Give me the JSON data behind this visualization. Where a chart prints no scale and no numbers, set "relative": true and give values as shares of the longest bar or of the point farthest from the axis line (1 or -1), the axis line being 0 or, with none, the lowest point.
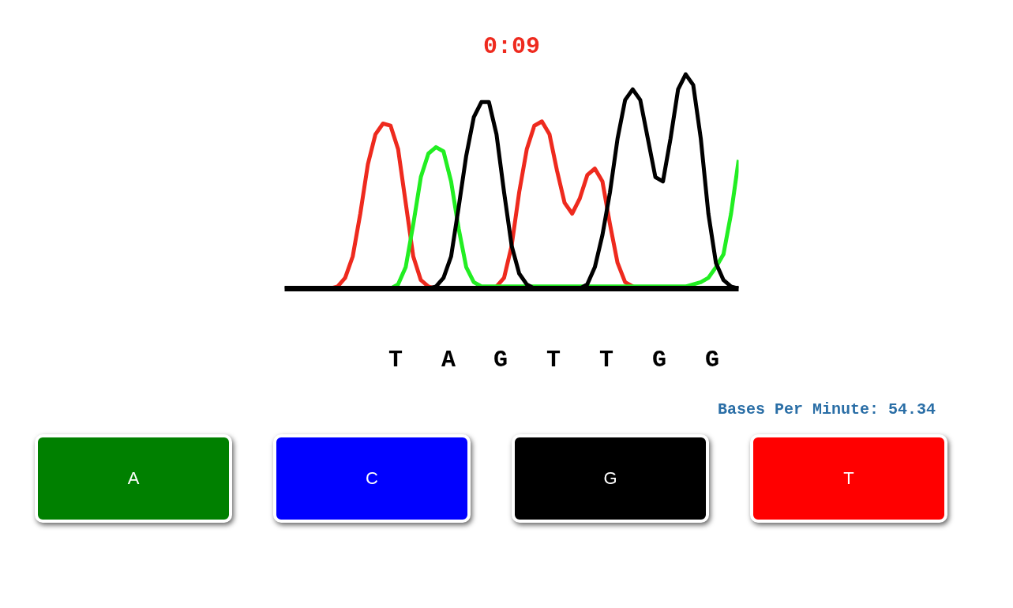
{
  "chart_data": {
    "type": "line",
    "relative": true,
    "title": "0:09",
    "categories": [
      null,
      null,
      null,
      null,
      null,
      null,
      null,
      null,
      null,
      null,
      null,
      null,
      null,
      null,
      null,
      null,
      null,
      null,
      null,
      null,
      null,
      null,
      null,
      null,
      null,
      null,
      null,
      null,
      null,
      null,
      null,
      null,
      null,
      null,
      null,
      null,
      null,
      null,
      null,
      null,
      null,
      null,
      null,
      null,
      null,
      null,
      null,
      null,
      null,
      null,
      null,
      null,
      null,
      null,
      null,
      null,
      null,
      null,
      null,
      null,
      null
    ],
    "series": [
      {
        "color": "#ee2a1e",
        "values": [
          null,
          null,
          null,
          null,
          null,
          0,
          0,
          0.01,
          0.05,
          0.15,
          0.35,
          0.58,
          0.72,
          0.77,
          0.76,
          0.65,
          0.4,
          0.15,
          0.04,
          0.01,
          0,
          0,
          0,
          0,
          0,
          0,
          0,
          0,
          0.01,
          0.05,
          0.2,
          0.45,
          0.65,
          0.76,
          0.78,
          0.72,
          0.55,
          0.4,
          0.35,
          0.42,
          0.53,
          0.56,
          0.5,
          0.3,
          0.12,
          0.03,
          0.01,
          0,
          null,
          null,
          null,
          null,
          null,
          null,
          null,
          null,
          null,
          null,
          null,
          null,
          null
        ]
      },
      {
        "color": "#22ee22",
        "values": [
          null,
          null,
          null,
          null,
          null,
          null,
          null,
          null,
          null,
          null,
          null,
          null,
          null,
          0,
          0,
          0.02,
          0.1,
          0.3,
          0.52,
          0.63,
          0.66,
          0.64,
          0.5,
          0.28,
          0.1,
          0.03,
          0.01,
          0.01,
          0.01,
          0.01,
          0.01,
          0.01,
          0.01,
          0.01,
          0.01,
          0.01,
          0.01,
          0.01,
          0.01,
          0.01,
          0.01,
          0.01,
          0.01,
          0.01,
          0.01,
          0.01,
          0.01,
          0.01,
          0.01,
          0.01,
          0.01,
          0.01,
          0.01,
          0.01,
          0.02,
          0.03,
          0.05,
          0.1,
          0.16,
          0.35,
          0.6
        ]
      },
      {
        "color": "#000000",
        "values": [
          0,
          0,
          0,
          0,
          0,
          0,
          0,
          0,
          0,
          0,
          0,
          0,
          0,
          0,
          0,
          0,
          0,
          0,
          0,
          0,
          0.01,
          0.05,
          0.15,
          0.38,
          0.62,
          0.8,
          0.87,
          0.87,
          0.72,
          0.45,
          0.2,
          0.07,
          0.02,
          0,
          0,
          0,
          0,
          0,
          0,
          0,
          0.02,
          0.1,
          0.25,
          0.45,
          0.7,
          0.88,
          0.93,
          0.88,
          0.7,
          0.52,
          0.5,
          0.7,
          0.93,
          1.0,
          0.95,
          0.7,
          0.35,
          0.12,
          0.04,
          0.01,
          0
        ]
      }
    ],
    "annotations": [
      "T",
      "A",
      "G",
      "T",
      "T",
      "G",
      "G",
      "Bases Per Minute: 54.34",
      "A",
      "C",
      "G",
      "T"
    ]
  }
}
